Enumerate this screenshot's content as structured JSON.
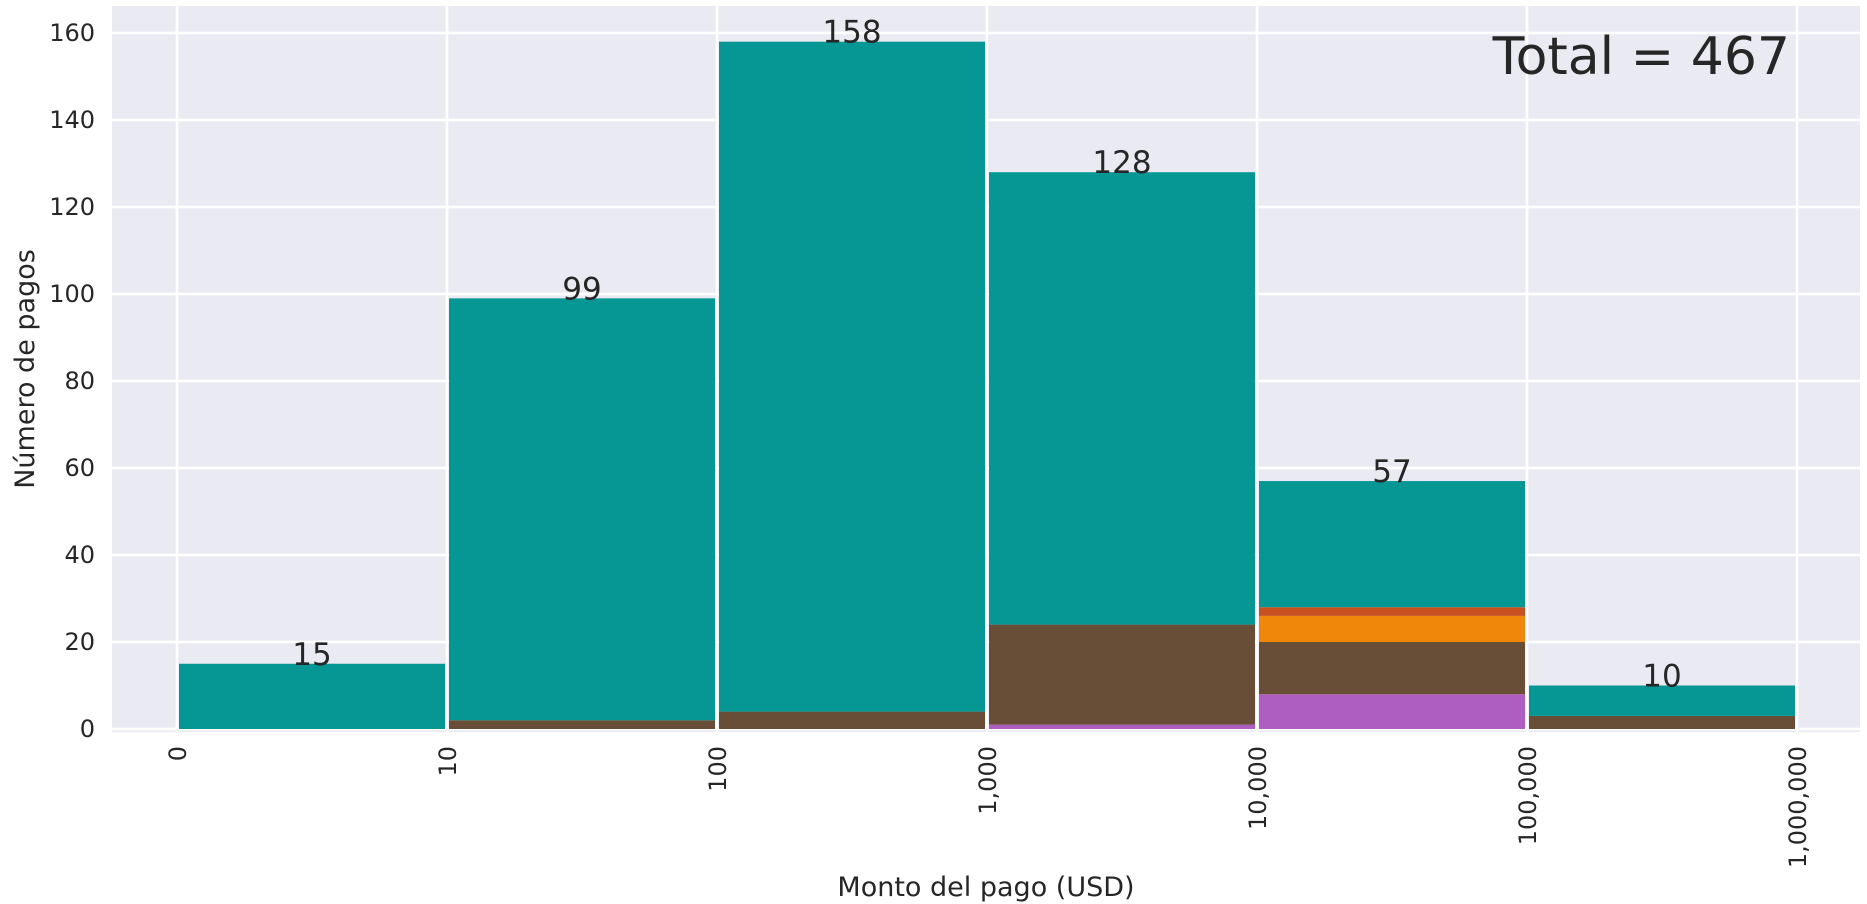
{
  "chart_data": {
    "type": "bar",
    "stacked": true,
    "categories": [
      "0–10",
      "10–100",
      "100–1,000",
      "1,000–10,000",
      "10,000–100,000",
      "100,000–1,000,000"
    ],
    "x_edges_labels": [
      "0",
      "10",
      "100",
      "1,000",
      "10,000",
      "100,000",
      "1,000,000"
    ],
    "totals": [
      15,
      99,
      158,
      128,
      57,
      10
    ],
    "series": [
      {
        "color": "#ae5ec0",
        "values": [
          0,
          0,
          0,
          1,
          8,
          0
        ]
      },
      {
        "color": "#684e36",
        "values": [
          0,
          2,
          4,
          23,
          12,
          3
        ]
      },
      {
        "color": "#f0870b",
        "values": [
          0,
          0,
          0,
          0,
          6,
          0
        ]
      },
      {
        "color": "#c9501f",
        "values": [
          0,
          0,
          0,
          0,
          2,
          0
        ]
      },
      {
        "color": "#069794",
        "values": [
          15,
          97,
          154,
          104,
          29,
          7
        ]
      }
    ],
    "bar_labels": [
      "15",
      "99",
      "158",
      "128",
      "57",
      "10"
    ],
    "xlabel": "Monto del pago (USD)",
    "ylabel": "Número de pagos",
    "ylim": [
      0,
      160
    ],
    "yticks": [
      0,
      20,
      40,
      60,
      80,
      100,
      120,
      140,
      160
    ],
    "annotation": "Total = 467",
    "grid": true,
    "plot_background": "#eaeaf2"
  }
}
